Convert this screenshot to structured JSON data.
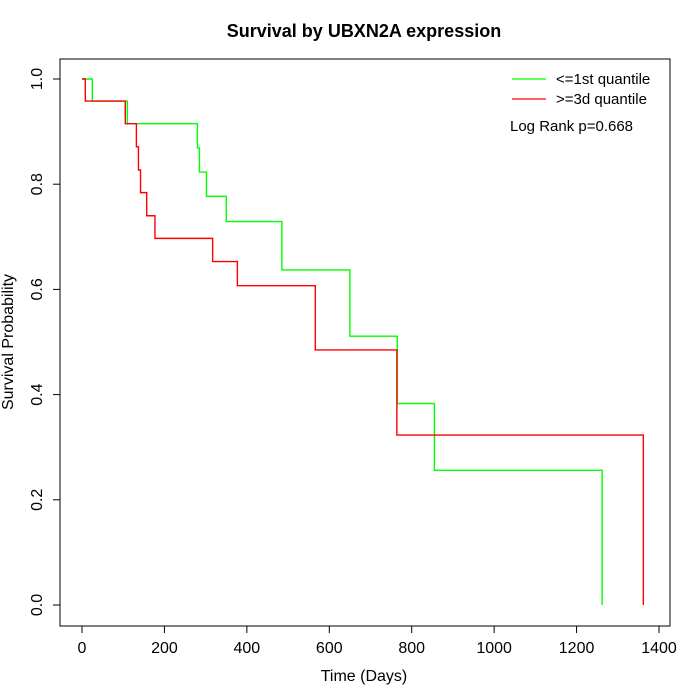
{
  "chart_data": {
    "type": "line",
    "step": true,
    "title": "Survival by UBXN2A expression",
    "xlabel": "Time (Days)",
    "ylabel": "Survival Probability",
    "xlim": [
      0,
      1400
    ],
    "ylim": [
      0,
      1.0
    ],
    "xticks": [
      0,
      200,
      400,
      600,
      800,
      1000,
      1200,
      1400
    ],
    "yticks": [
      0.0,
      0.2,
      0.4,
      0.6,
      0.8,
      1.0
    ],
    "xtick_labels": [
      "0",
      "200",
      "400",
      "600",
      "800",
      "1000",
      "1200",
      "1400"
    ],
    "ytick_labels": [
      "0.0",
      "0.2",
      "0.4",
      "0.6",
      "0.8",
      "1.0"
    ],
    "grid": false,
    "legend_position": "top-right",
    "annotation": "Log Rank p=0.668",
    "series": [
      {
        "name": "<=1st quantile",
        "color": "#00ff00",
        "x": [
          0,
          25,
          110,
          280,
          285,
          302,
          350,
          485,
          650,
          765,
          855,
          1262,
          1262
        ],
        "y": [
          1.0,
          0.958,
          0.915,
          0.869,
          0.823,
          0.777,
          0.729,
          0.637,
          0.511,
          0.383,
          0.256,
          0.0,
          0.0
        ]
      },
      {
        "name": ">=3d quantile",
        "color": "#ff0000",
        "x": [
          0,
          8,
          105,
          132,
          137,
          142,
          157,
          177,
          317,
          377,
          566,
          764,
          1362,
          1362
        ],
        "y": [
          1.0,
          0.958,
          0.915,
          0.871,
          0.827,
          0.784,
          0.74,
          0.697,
          0.653,
          0.607,
          0.485,
          0.323,
          0.0,
          0.0
        ]
      }
    ]
  }
}
